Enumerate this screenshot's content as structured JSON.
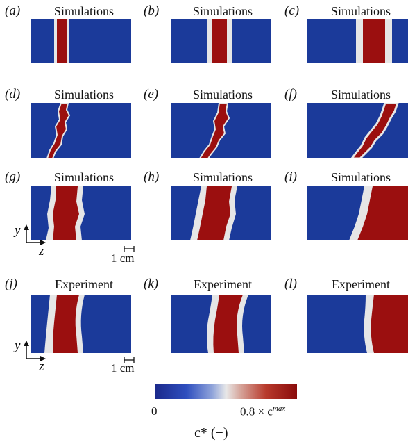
{
  "panels": [
    {
      "label": "(a)",
      "title": "Simulations"
    },
    {
      "label": "(b)",
      "title": "Simulations"
    },
    {
      "label": "(c)",
      "title": "Simulations"
    },
    {
      "label": "(d)",
      "title": "Simulations"
    },
    {
      "label": "(e)",
      "title": "Simulations"
    },
    {
      "label": "(f)",
      "title": "Simulations"
    },
    {
      "label": "(g)",
      "title": "Simulations"
    },
    {
      "label": "(h)",
      "title": "Simulations"
    },
    {
      "label": "(i)",
      "title": "Simulations"
    },
    {
      "label": "(j)",
      "title": "Experiment"
    },
    {
      "label": "(k)",
      "title": "Experiment"
    },
    {
      "label": "(l)",
      "title": "Experiment"
    }
  ],
  "axes": {
    "y": "y",
    "z": "z"
  },
  "scale": "1 cm",
  "colorbar": {
    "min": "0",
    "max": "0.8 × c",
    "max_sup": "max",
    "label": "c* (−)"
  },
  "colors": {
    "low": "#1b3a9a",
    "high": "#9b0f0f",
    "mid": "#e6e6e6"
  }
}
